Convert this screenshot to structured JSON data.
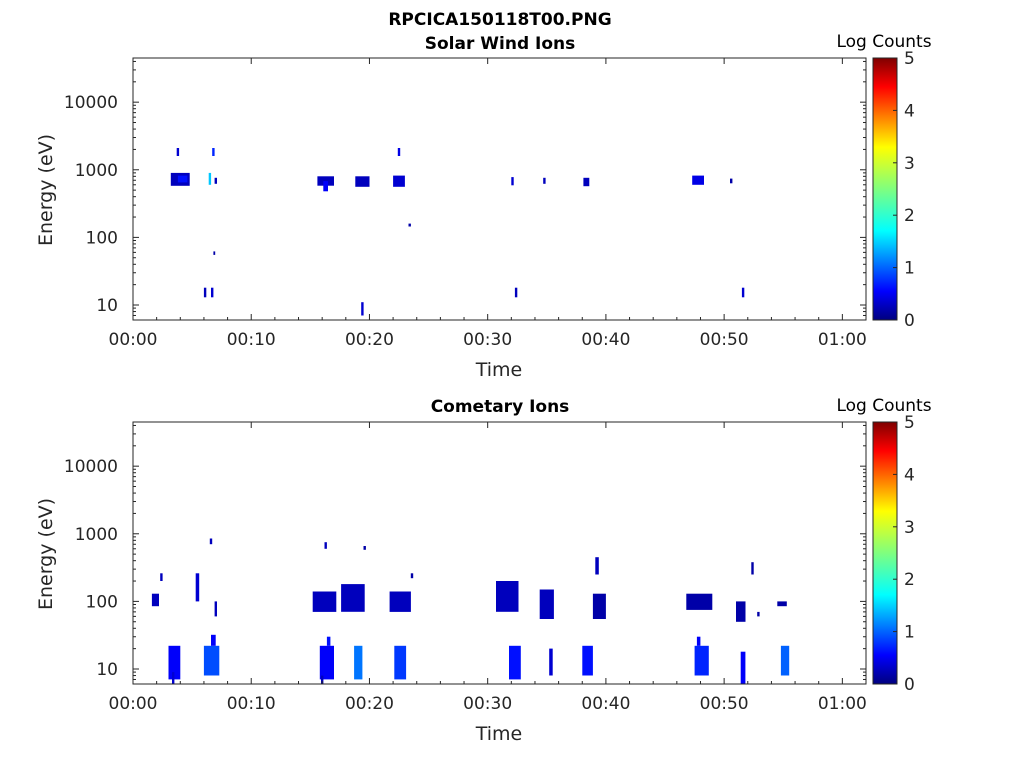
{
  "figure": {
    "title": "RPCICA150118T00.PNG"
  },
  "chart_data": [
    {
      "type": "heatmap",
      "title": "Solar Wind Ions",
      "xlabel": "Time",
      "ylabel": "Energy (eV)",
      "x_unit": "minutes",
      "xlim": [
        0,
        62
      ],
      "x_ticks": [
        {
          "value": 0,
          "label": "00:00"
        },
        {
          "value": 10,
          "label": "00:10"
        },
        {
          "value": 20,
          "label": "00:20"
        },
        {
          "value": 30,
          "label": "00:30"
        },
        {
          "value": 40,
          "label": "00:40"
        },
        {
          "value": 50,
          "label": "00:50"
        },
        {
          "value": 60,
          "label": "01:00"
        }
      ],
      "yscale": "log",
      "ylim": [
        6,
        45000
      ],
      "y_ticks": [
        {
          "value": 10,
          "label": "10"
        },
        {
          "value": 100,
          "label": "100"
        },
        {
          "value": 1000,
          "label": "1000"
        },
        {
          "value": 10000,
          "label": "10000"
        }
      ],
      "colorbar": {
        "label": "Log Counts",
        "min": 0,
        "max": 5,
        "colormap": "jet",
        "ticks": [
          {
            "value": 0,
            "label": "0"
          },
          {
            "value": 1,
            "label": "1"
          },
          {
            "value": 2,
            "label": "2"
          },
          {
            "value": 3,
            "label": "3"
          },
          {
            "value": 4,
            "label": "4"
          },
          {
            "value": 5,
            "label": "5"
          }
        ]
      },
      "cells": [
        {
          "t0": 3.2,
          "t1": 4.8,
          "e0": 580,
          "e1": 900,
          "v": 0.3
        },
        {
          "t0": 3.8,
          "t1": 4.6,
          "e0": 650,
          "e1": 820,
          "v": 0.7
        },
        {
          "t0": 3.7,
          "t1": 3.9,
          "e0": 1600,
          "e1": 2100,
          "v": 0.4
        },
        {
          "t0": 6.4,
          "t1": 6.6,
          "e0": 600,
          "e1": 900,
          "v": 1.6
        },
        {
          "t0": 6.7,
          "t1": 6.9,
          "e0": 1600,
          "e1": 2100,
          "v": 0.8
        },
        {
          "t0": 6.9,
          "t1": 7.1,
          "e0": 620,
          "e1": 760,
          "v": 0.3
        },
        {
          "t0": 6.8,
          "t1": 6.95,
          "e0": 55,
          "e1": 62,
          "v": 0.2
        },
        {
          "t0": 6.0,
          "t1": 6.2,
          "e0": 13,
          "e1": 18,
          "v": 0.3
        },
        {
          "t0": 6.6,
          "t1": 6.8,
          "e0": 13,
          "e1": 18,
          "v": 0.4
        },
        {
          "t0": 15.6,
          "t1": 17.0,
          "e0": 580,
          "e1": 800,
          "v": 0.3
        },
        {
          "t0": 16.1,
          "t1": 16.5,
          "e0": 480,
          "e1": 680,
          "v": 0.6
        },
        {
          "t0": 18.8,
          "t1": 20.0,
          "e0": 560,
          "e1": 800,
          "v": 0.3
        },
        {
          "t0": 19.3,
          "t1": 19.5,
          "e0": 7,
          "e1": 11,
          "v": 0.4
        },
        {
          "t0": 22.0,
          "t1": 23.0,
          "e0": 560,
          "e1": 820,
          "v": 0.4
        },
        {
          "t0": 22.4,
          "t1": 22.6,
          "e0": 1600,
          "e1": 2100,
          "v": 0.5
        },
        {
          "t0": 23.3,
          "t1": 23.5,
          "e0": 145,
          "e1": 160,
          "v": 0.2
        },
        {
          "t0": 32.0,
          "t1": 32.2,
          "e0": 590,
          "e1": 780,
          "v": 0.4
        },
        {
          "t0": 32.3,
          "t1": 32.5,
          "e0": 13,
          "e1": 18,
          "v": 0.3
        },
        {
          "t0": 34.7,
          "t1": 34.9,
          "e0": 620,
          "e1": 760,
          "v": 0.3
        },
        {
          "t0": 38.1,
          "t1": 38.6,
          "e0": 570,
          "e1": 760,
          "v": 0.3
        },
        {
          "t0": 47.3,
          "t1": 48.3,
          "e0": 600,
          "e1": 820,
          "v": 0.5
        },
        {
          "t0": 50.5,
          "t1": 50.7,
          "e0": 630,
          "e1": 740,
          "v": 0.2
        },
        {
          "t0": 51.5,
          "t1": 51.7,
          "e0": 13,
          "e1": 18,
          "v": 0.4
        }
      ]
    },
    {
      "type": "heatmap",
      "title": "Cometary Ions",
      "xlabel": "Time",
      "ylabel": "Energy (eV)",
      "x_unit": "minutes",
      "xlim": [
        0,
        62
      ],
      "x_ticks": [
        {
          "value": 0,
          "label": "00:00"
        },
        {
          "value": 10,
          "label": "00:10"
        },
        {
          "value": 20,
          "label": "00:20"
        },
        {
          "value": 30,
          "label": "00:30"
        },
        {
          "value": 40,
          "label": "00:40"
        },
        {
          "value": 50,
          "label": "00:50"
        },
        {
          "value": 60,
          "label": "01:00"
        }
      ],
      "yscale": "log",
      "ylim": [
        6,
        45000
      ],
      "y_ticks": [
        {
          "value": 10,
          "label": "10"
        },
        {
          "value": 100,
          "label": "100"
        },
        {
          "value": 1000,
          "label": "1000"
        },
        {
          "value": 10000,
          "label": "10000"
        }
      ],
      "colorbar": {
        "label": "Log Counts",
        "min": 0,
        "max": 5,
        "colormap": "jet",
        "ticks": [
          {
            "value": 0,
            "label": "0"
          },
          {
            "value": 1,
            "label": "1"
          },
          {
            "value": 2,
            "label": "2"
          },
          {
            "value": 3,
            "label": "3"
          },
          {
            "value": 4,
            "label": "4"
          },
          {
            "value": 5,
            "label": "5"
          }
        ]
      },
      "cells": [
        {
          "t0": 3.0,
          "t1": 4.0,
          "e0": 7,
          "e1": 22,
          "v": 0.6
        },
        {
          "t0": 3.3,
          "t1": 3.5,
          "e0": 6,
          "e1": 9,
          "v": 0.4
        },
        {
          "t0": 6.0,
          "t1": 7.3,
          "e0": 8,
          "e1": 22,
          "v": 1.0
        },
        {
          "t0": 6.6,
          "t1": 7.0,
          "e0": 22,
          "e1": 32,
          "v": 0.6
        },
        {
          "t0": 6.5,
          "t1": 6.7,
          "e0": 700,
          "e1": 850,
          "v": 0.3
        },
        {
          "t0": 1.6,
          "t1": 2.2,
          "e0": 85,
          "e1": 130,
          "v": 0.3
        },
        {
          "t0": 2.3,
          "t1": 2.5,
          "e0": 200,
          "e1": 260,
          "v": 0.3
        },
        {
          "t0": 5.3,
          "t1": 5.6,
          "e0": 100,
          "e1": 260,
          "v": 0.4
        },
        {
          "t0": 6.9,
          "t1": 7.1,
          "e0": 60,
          "e1": 100,
          "v": 0.3
        },
        {
          "t0": 15.8,
          "t1": 17.0,
          "e0": 7,
          "e1": 22,
          "v": 0.6
        },
        {
          "t0": 15.9,
          "t1": 16.1,
          "e0": 6,
          "e1": 8,
          "v": 0.3
        },
        {
          "t0": 16.4,
          "t1": 16.7,
          "e0": 22,
          "e1": 30,
          "v": 0.7
        },
        {
          "t0": 15.2,
          "t1": 17.2,
          "e0": 70,
          "e1": 140,
          "v": 0.3
        },
        {
          "t0": 16.2,
          "t1": 16.4,
          "e0": 600,
          "e1": 750,
          "v": 0.3
        },
        {
          "t0": 18.7,
          "t1": 19.4,
          "e0": 7,
          "e1": 22,
          "v": 1.2
        },
        {
          "t0": 17.6,
          "t1": 19.6,
          "e0": 70,
          "e1": 180,
          "v": 0.3
        },
        {
          "t0": 19.5,
          "t1": 19.7,
          "e0": 580,
          "e1": 660,
          "v": 0.2
        },
        {
          "t0": 22.1,
          "t1": 23.1,
          "e0": 7,
          "e1": 22,
          "v": 0.9
        },
        {
          "t0": 21.7,
          "t1": 23.5,
          "e0": 70,
          "e1": 140,
          "v": 0.3
        },
        {
          "t0": 23.5,
          "t1": 23.7,
          "e0": 220,
          "e1": 260,
          "v": 0.2
        },
        {
          "t0": 31.8,
          "t1": 32.8,
          "e0": 7,
          "e1": 22,
          "v": 0.7
        },
        {
          "t0": 30.7,
          "t1": 32.6,
          "e0": 70,
          "e1": 200,
          "v": 0.3
        },
        {
          "t0": 35.2,
          "t1": 35.5,
          "e0": 8,
          "e1": 20,
          "v": 0.4
        },
        {
          "t0": 34.4,
          "t1": 35.6,
          "e0": 55,
          "e1": 150,
          "v": 0.3
        },
        {
          "t0": 38.0,
          "t1": 38.9,
          "e0": 8,
          "e1": 22,
          "v": 0.7
        },
        {
          "t0": 39.1,
          "t1": 39.4,
          "e0": 250,
          "e1": 450,
          "v": 0.3
        },
        {
          "t0": 38.9,
          "t1": 40.0,
          "e0": 55,
          "e1": 130,
          "v": 0.2
        },
        {
          "t0": 47.5,
          "t1": 48.7,
          "e0": 8,
          "e1": 22,
          "v": 0.8
        },
        {
          "t0": 47.7,
          "t1": 48.0,
          "e0": 22,
          "e1": 30,
          "v": 0.6
        },
        {
          "t0": 46.8,
          "t1": 49.0,
          "e0": 75,
          "e1": 130,
          "v": 0.2
        },
        {
          "t0": 51.4,
          "t1": 51.8,
          "e0": 6,
          "e1": 18,
          "v": 0.6
        },
        {
          "t0": 51.0,
          "t1": 51.8,
          "e0": 50,
          "e1": 100,
          "v": 0.2
        },
        {
          "t0": 54.8,
          "t1": 55.5,
          "e0": 8,
          "e1": 22,
          "v": 1.1
        },
        {
          "t0": 52.8,
          "t1": 53.0,
          "e0": 60,
          "e1": 70,
          "v": 0.2
        },
        {
          "t0": 54.5,
          "t1": 55.3,
          "e0": 85,
          "e1": 100,
          "v": 0.2
        },
        {
          "t0": 52.3,
          "t1": 52.5,
          "e0": 250,
          "e1": 380,
          "v": 0.2
        }
      ]
    }
  ]
}
